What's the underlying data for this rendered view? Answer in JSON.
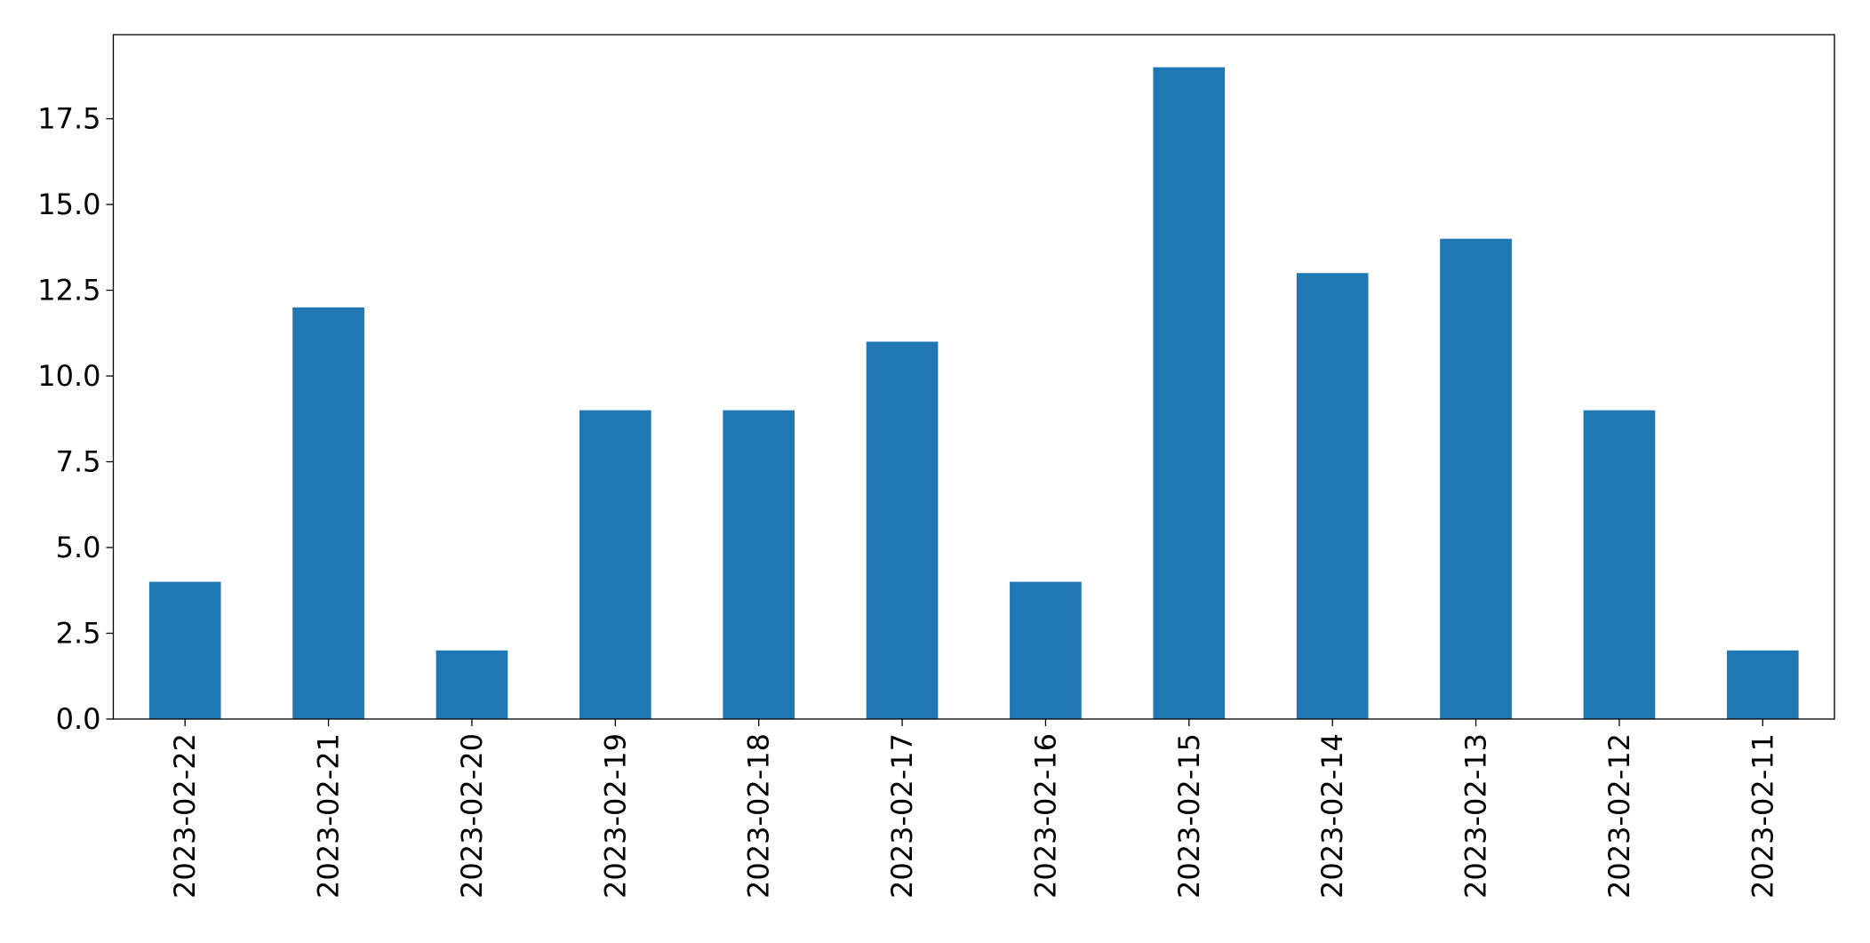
{
  "chart_data": {
    "type": "bar",
    "categories": [
      "2023-02-22",
      "2023-02-21",
      "2023-02-20",
      "2023-02-19",
      "2023-02-18",
      "2023-02-17",
      "2023-02-16",
      "2023-02-15",
      "2023-02-14",
      "2023-02-13",
      "2023-02-12",
      "2023-02-11"
    ],
    "values": [
      4,
      12,
      2,
      9,
      9,
      11,
      4,
      19,
      13,
      14,
      9,
      2
    ],
    "color": "#1f77b4",
    "ylim": [
      0,
      19.95
    ],
    "yticks": [
      {
        "value": 0,
        "label": "0.0"
      },
      2.5,
      {
        "value": 5,
        "label": "5.0"
      },
      7.5,
      {
        "value": 10,
        "label": "10.0"
      },
      12.5,
      {
        "value": 15,
        "label": "15.0"
      },
      17.5
    ],
    "grid": false
  }
}
